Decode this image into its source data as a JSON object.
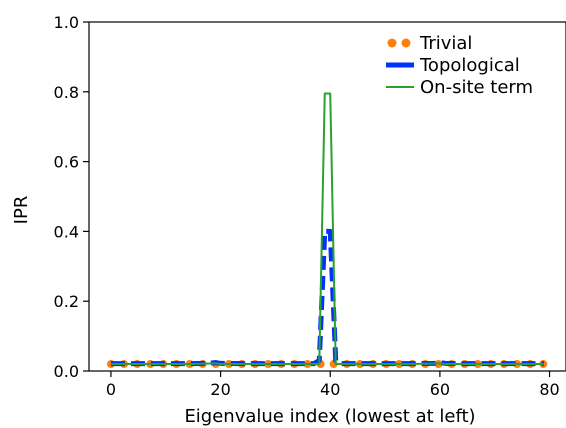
{
  "chart_data": {
    "type": "line",
    "title": "",
    "xlabel": "Eigenvalue index (lowest at left)",
    "ylabel": "IPR",
    "xlim": [
      -4,
      83
    ],
    "ylim": [
      0,
      1
    ],
    "xticks": [
      0,
      20,
      40,
      60,
      80
    ],
    "xtick_labels": [
      "0",
      "20",
      "40",
      "60",
      "80"
    ],
    "yticks": [
      0,
      0.2,
      0.4,
      0.6,
      0.8,
      1.0
    ],
    "ytick_labels": [
      "0.0",
      "0.2",
      "0.4",
      "0.6",
      "0.8",
      "1.0"
    ],
    "grid": false,
    "legend": "top-right",
    "series": [
      {
        "name": "Trivial",
        "style": "dotted",
        "color": "#ff7f0e",
        "x": [
          0,
          2,
          4,
          6,
          8,
          10,
          12,
          14,
          16,
          18,
          20,
          22,
          24,
          26,
          28,
          30,
          32,
          34,
          36,
          38,
          40,
          42,
          44,
          46,
          48,
          50,
          52,
          54,
          56,
          58,
          60,
          62,
          64,
          66,
          68,
          70,
          72,
          74,
          76,
          78,
          79
        ],
        "y": [
          0.02,
          0.02,
          0.02,
          0.02,
          0.02,
          0.02,
          0.02,
          0.02,
          0.02,
          0.02,
          0.02,
          0.02,
          0.02,
          0.02,
          0.02,
          0.02,
          0.02,
          0.02,
          0.02,
          0.02,
          0.02,
          0.02,
          0.02,
          0.02,
          0.02,
          0.02,
          0.02,
          0.02,
          0.02,
          0.02,
          0.02,
          0.02,
          0.02,
          0.02,
          0.02,
          0.02,
          0.02,
          0.02,
          0.02,
          0.02,
          0.02
        ]
      },
      {
        "name": "Topological",
        "style": "dashed",
        "color": "#0033ff",
        "x": [
          0,
          5,
          10,
          15,
          18,
          19,
          20,
          25,
          30,
          35,
          37,
          38,
          39,
          40,
          41,
          42,
          45,
          50,
          55,
          59,
          60,
          61,
          65,
          70,
          75,
          79
        ],
        "y": [
          0.021,
          0.021,
          0.021,
          0.021,
          0.022,
          0.024,
          0.022,
          0.021,
          0.021,
          0.021,
          0.021,
          0.03,
          0.4,
          0.4,
          0.03,
          0.021,
          0.021,
          0.021,
          0.021,
          0.022,
          0.024,
          0.022,
          0.021,
          0.021,
          0.021,
          0.021
        ]
      },
      {
        "name": "On-site term",
        "style": "solid",
        "color": "#2ca02c",
        "x": [
          0,
          5,
          10,
          15,
          19,
          20,
          25,
          30,
          35,
          37,
          38,
          39,
          40,
          41,
          42,
          45,
          50,
          55,
          60,
          61,
          65,
          70,
          75,
          79
        ],
        "y": [
          0.02,
          0.02,
          0.02,
          0.02,
          0.022,
          0.02,
          0.02,
          0.02,
          0.02,
          0.02,
          0.02,
          0.795,
          0.795,
          0.02,
          0.02,
          0.02,
          0.02,
          0.02,
          0.022,
          0.02,
          0.02,
          0.02,
          0.02,
          0.02
        ]
      }
    ]
  }
}
